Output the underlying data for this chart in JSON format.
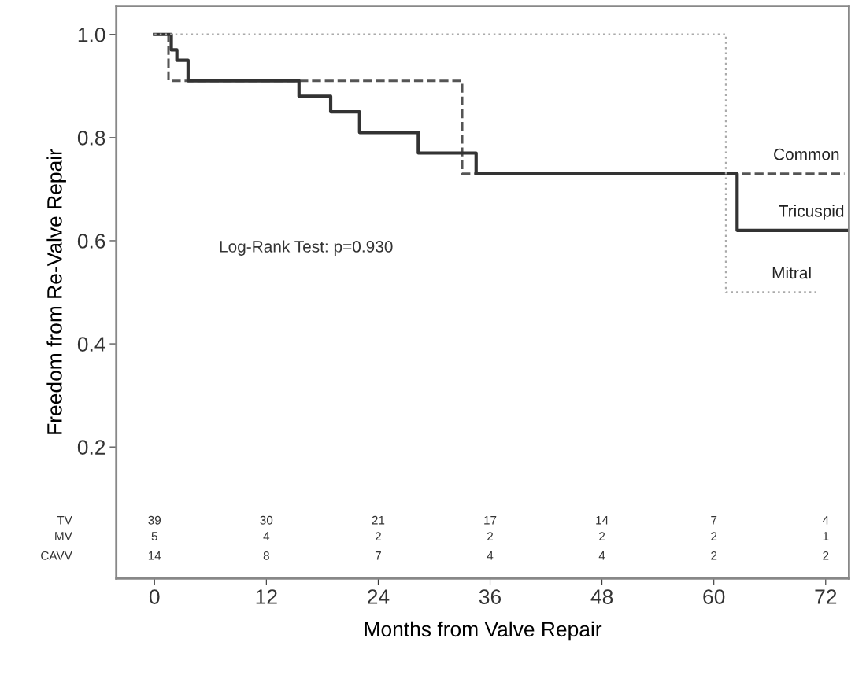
{
  "chart_data": {
    "type": "step",
    "xlabel": "Months from Valve Repair",
    "ylabel": "Freedom from Re-Valve Repair",
    "xlim": [
      -4.1,
      74.5
    ],
    "xticks": [
      0,
      12,
      24,
      36,
      48,
      60,
      72
    ],
    "ylim": [
      -0.055,
      1.055
    ],
    "yticks": [
      0.2,
      0.4,
      0.6,
      0.8,
      {
        "value": 1,
        "label": "1.0"
      }
    ],
    "legend": false,
    "grid": false,
    "series": [
      {
        "name": "Common",
        "color": "#555555",
        "line_style": "dashed",
        "x": [
          0,
          1.5,
          33,
          74
        ],
        "values": [
          1.0,
          0.91,
          0.73,
          0.73
        ]
      },
      {
        "name": "Tricuspid",
        "color": "#333333",
        "line_style": "solid",
        "x": [
          0,
          1.8,
          2.4,
          3.6,
          15.5,
          18.9,
          22,
          28.3,
          34.5,
          62.5,
          74.5
        ],
        "values": [
          1.0,
          0.97,
          0.95,
          0.91,
          0.88,
          0.85,
          0.81,
          0.77,
          0.73,
          0.62,
          0.62
        ]
      },
      {
        "name": "Mitral",
        "color": "#aaaaaa",
        "line_style": "dotted",
        "x": [
          0,
          61.3,
          71
        ],
        "values": [
          1.0,
          0.5,
          0.5
        ]
      }
    ],
    "annotations": [
      "Log-Rank Test: p=0.930",
      "TV",
      "39",
      "30",
      "21",
      "17",
      "14",
      "7",
      "4",
      "MV",
      "5",
      "4",
      "2",
      "2",
      "2",
      "2",
      "1",
      "CAVV",
      "14",
      "8",
      "7",
      "4",
      "4",
      "2",
      "2"
    ]
  }
}
